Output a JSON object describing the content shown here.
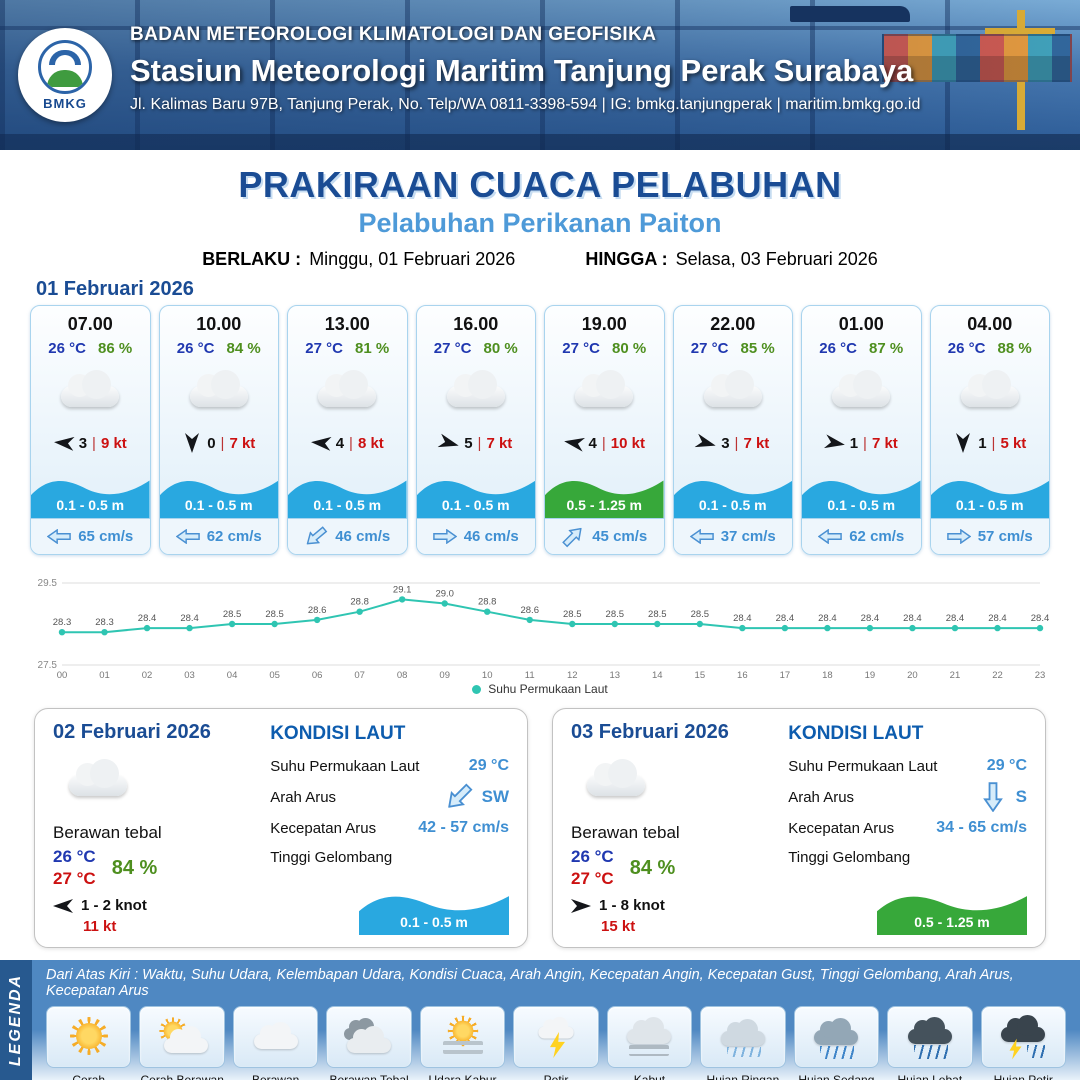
{
  "colors": {
    "accent_blue": "#1a4c94",
    "subtitle_blue": "#4e9ad8",
    "temp_blue": "#2038b0",
    "humidity_green": "#4e8f1f",
    "alert_red": "#cc1111",
    "value_blue": "#3f8fd2",
    "wave_blue": "#29a8e0",
    "wave_green": "#37a83a",
    "chart_line": "#2fc5b2"
  },
  "header": {
    "logo_label": "BMKG",
    "org": "BADAN METEOROLOGI KLIMATOLOGI DAN GEOFISIKA",
    "station": "Stasiun Meteorologi Maritim Tanjung Perak Surabaya",
    "address": "Jl. Kalimas Baru 97B, Tanjung Perak, No. Telp/WA 0811-3398-594 | IG: bmkg.tanjungperak | maritim.bmkg.go.id"
  },
  "title": {
    "main": "PRAKIRAAN CUACA PELABUHAN",
    "subtitle": "Pelabuhan Perikanan Paiton",
    "berlaku_label": "BERLAKU :",
    "berlaku_value": "Minggu, 01 Februari 2026",
    "hingga_label": "HINGGA :",
    "hingga_value": "Selasa, 03 Februari 2026"
  },
  "forecast_day1": {
    "date": "01 Februari 2026",
    "cards": [
      {
        "time": "07.00",
        "temp": "26 °C",
        "humidity": "86 %",
        "weather": "Berawan",
        "wind_speed": "3",
        "wind_gust": "9 kt",
        "wind_rot": 185,
        "wave": "0.1 - 0.5 m",
        "wave_color": "blue",
        "current_speed": "65 cm/s",
        "current_rot": 180
      },
      {
        "time": "10.00",
        "temp": "26 °C",
        "humidity": "84 %",
        "weather": "Berawan",
        "wind_speed": "0",
        "wind_gust": "7 kt",
        "wind_rot": 90,
        "wave": "0.1 - 0.5 m",
        "wave_color": "blue",
        "current_speed": "62 cm/s",
        "current_rot": 180
      },
      {
        "time": "13.00",
        "temp": "27 °C",
        "humidity": "81 %",
        "weather": "Berawan",
        "wind_speed": "4",
        "wind_gust": "8 kt",
        "wind_rot": 185,
        "wave": "0.1 - 0.5 m",
        "wave_color": "blue",
        "current_speed": "46 cm/s",
        "current_rot": 140
      },
      {
        "time": "16.00",
        "temp": "27 °C",
        "humidity": "80 %",
        "weather": "Berawan",
        "wind_speed": "5",
        "wind_gust": "7 kt",
        "wind_rot": 15,
        "wave": "0.1 - 0.5 m",
        "wave_color": "blue",
        "current_speed": "46 cm/s",
        "current_rot": 0
      },
      {
        "time": "19.00",
        "temp": "27 °C",
        "humidity": "80 %",
        "weather": "Berawan",
        "wind_speed": "4",
        "wind_gust": "10 kt",
        "wind_rot": 190,
        "wave": "0.5 - 1.25 m",
        "wave_color": "green",
        "current_speed": "45 cm/s",
        "current_rot": -45
      },
      {
        "time": "22.00",
        "temp": "27 °C",
        "humidity": "85 %",
        "weather": "Berawan",
        "wind_speed": "3",
        "wind_gust": "7 kt",
        "wind_rot": 15,
        "wave": "0.1 - 0.5 m",
        "wave_color": "blue",
        "current_speed": "37 cm/s",
        "current_rot": 180
      },
      {
        "time": "01.00",
        "temp": "26 °C",
        "humidity": "87 %",
        "weather": "Berawan",
        "wind_speed": "1",
        "wind_gust": "7 kt",
        "wind_rot": 10,
        "wave": "0.1 - 0.5 m",
        "wave_color": "blue",
        "current_speed": "62 cm/s",
        "current_rot": 180
      },
      {
        "time": "04.00",
        "temp": "26 °C",
        "humidity": "88 %",
        "weather": "Berawan",
        "wind_speed": "1",
        "wind_gust": "5 kt",
        "wind_rot": 90,
        "wave": "0.1 - 0.5 m",
        "wave_color": "blue",
        "current_speed": "57 cm/s",
        "current_rot": 0
      }
    ]
  },
  "chart_data": {
    "type": "line",
    "x": [
      "00",
      "01",
      "02",
      "03",
      "04",
      "05",
      "06",
      "07",
      "08",
      "09",
      "10",
      "11",
      "12",
      "13",
      "14",
      "15",
      "16",
      "17",
      "18",
      "19",
      "20",
      "21",
      "22",
      "23"
    ],
    "values": [
      28.3,
      28.3,
      28.4,
      28.4,
      28.5,
      28.5,
      28.6,
      28.8,
      29.1,
      29.0,
      28.8,
      28.6,
      28.5,
      28.5,
      28.5,
      28.5,
      28.4,
      28.4,
      28.4,
      28.4,
      28.4,
      28.4,
      28.4,
      28.4
    ],
    "ylim": [
      27.5,
      29.5
    ],
    "yticks": [
      27.5,
      29.5
    ],
    "legend": [
      "Suhu Permukaan Laut"
    ],
    "line_color": "#2fc5b2",
    "title": "",
    "xlabel": "",
    "ylabel": ""
  },
  "daily": [
    {
      "date": "02 Februari 2026",
      "weather": "Berawan tebal",
      "temp_min": "26 °C",
      "temp_max": "27 °C",
      "humidity": "84 %",
      "wind_range": "1 - 2 knot",
      "wind_rot": 180,
      "gust": "11 kt",
      "sea": {
        "heading": "KONDISI LAUT",
        "sst_label": "Suhu Permukaan Laut",
        "sst": "29 °C",
        "dir_label": "Arah Arus",
        "dir": "SW",
        "dir_rot": 135,
        "speed_label": "Kecepatan Arus",
        "speed": "42 - 57 cm/s",
        "wave_label": "Tinggi Gelombang",
        "wave": "0.1 - 0.5 m",
        "wave_color": "blue"
      }
    },
    {
      "date": "03 Februari 2026",
      "weather": "Berawan tebal",
      "temp_min": "26 °C",
      "temp_max": "27 °C",
      "humidity": "84 %",
      "wind_range": "1 - 8 knot",
      "wind_rot": 0,
      "gust": "15 kt",
      "sea": {
        "heading": "KONDISI LAUT",
        "sst_label": "Suhu Permukaan Laut",
        "sst": "29 °C",
        "dir_label": "Arah Arus",
        "dir": "S",
        "dir_rot": 90,
        "speed_label": "Kecepatan Arus",
        "speed": "34 - 65 cm/s",
        "wave_label": "Tinggi Gelombang",
        "wave": "0.5 - 1.25 m",
        "wave_color": "green"
      }
    }
  ],
  "legend": {
    "title": "LEGENDA",
    "note": "Dari Atas Kiri : Waktu, Suhu Udara, Kelembapan Udara, Kondisi Cuaca, Arah Angin, Kecepatan Angin, Kecepatan Gust, Tinggi Gelombang, Arah Arus, Kecepatan Arus",
    "items": [
      {
        "label": "Cerah",
        "icon": "sun"
      },
      {
        "label": "Cerah Berawan",
        "icon": "suncloud"
      },
      {
        "label": "Berawan",
        "icon": "cloud"
      },
      {
        "label": "Berawan Tebal",
        "icon": "clouddark"
      },
      {
        "label": "Udara Kabur",
        "icon": "haze"
      },
      {
        "label": "Petir",
        "icon": "bolt"
      },
      {
        "label": "Kabut",
        "icon": "fog"
      },
      {
        "label": "Hujan Ringan",
        "icon": "rainlight"
      },
      {
        "label": "Hujan Sedang",
        "icon": "rainmed"
      },
      {
        "label": "Hujan Lebat",
        "icon": "rainheavy"
      },
      {
        "label": "Hujan Petir",
        "icon": "storm"
      }
    ]
  }
}
